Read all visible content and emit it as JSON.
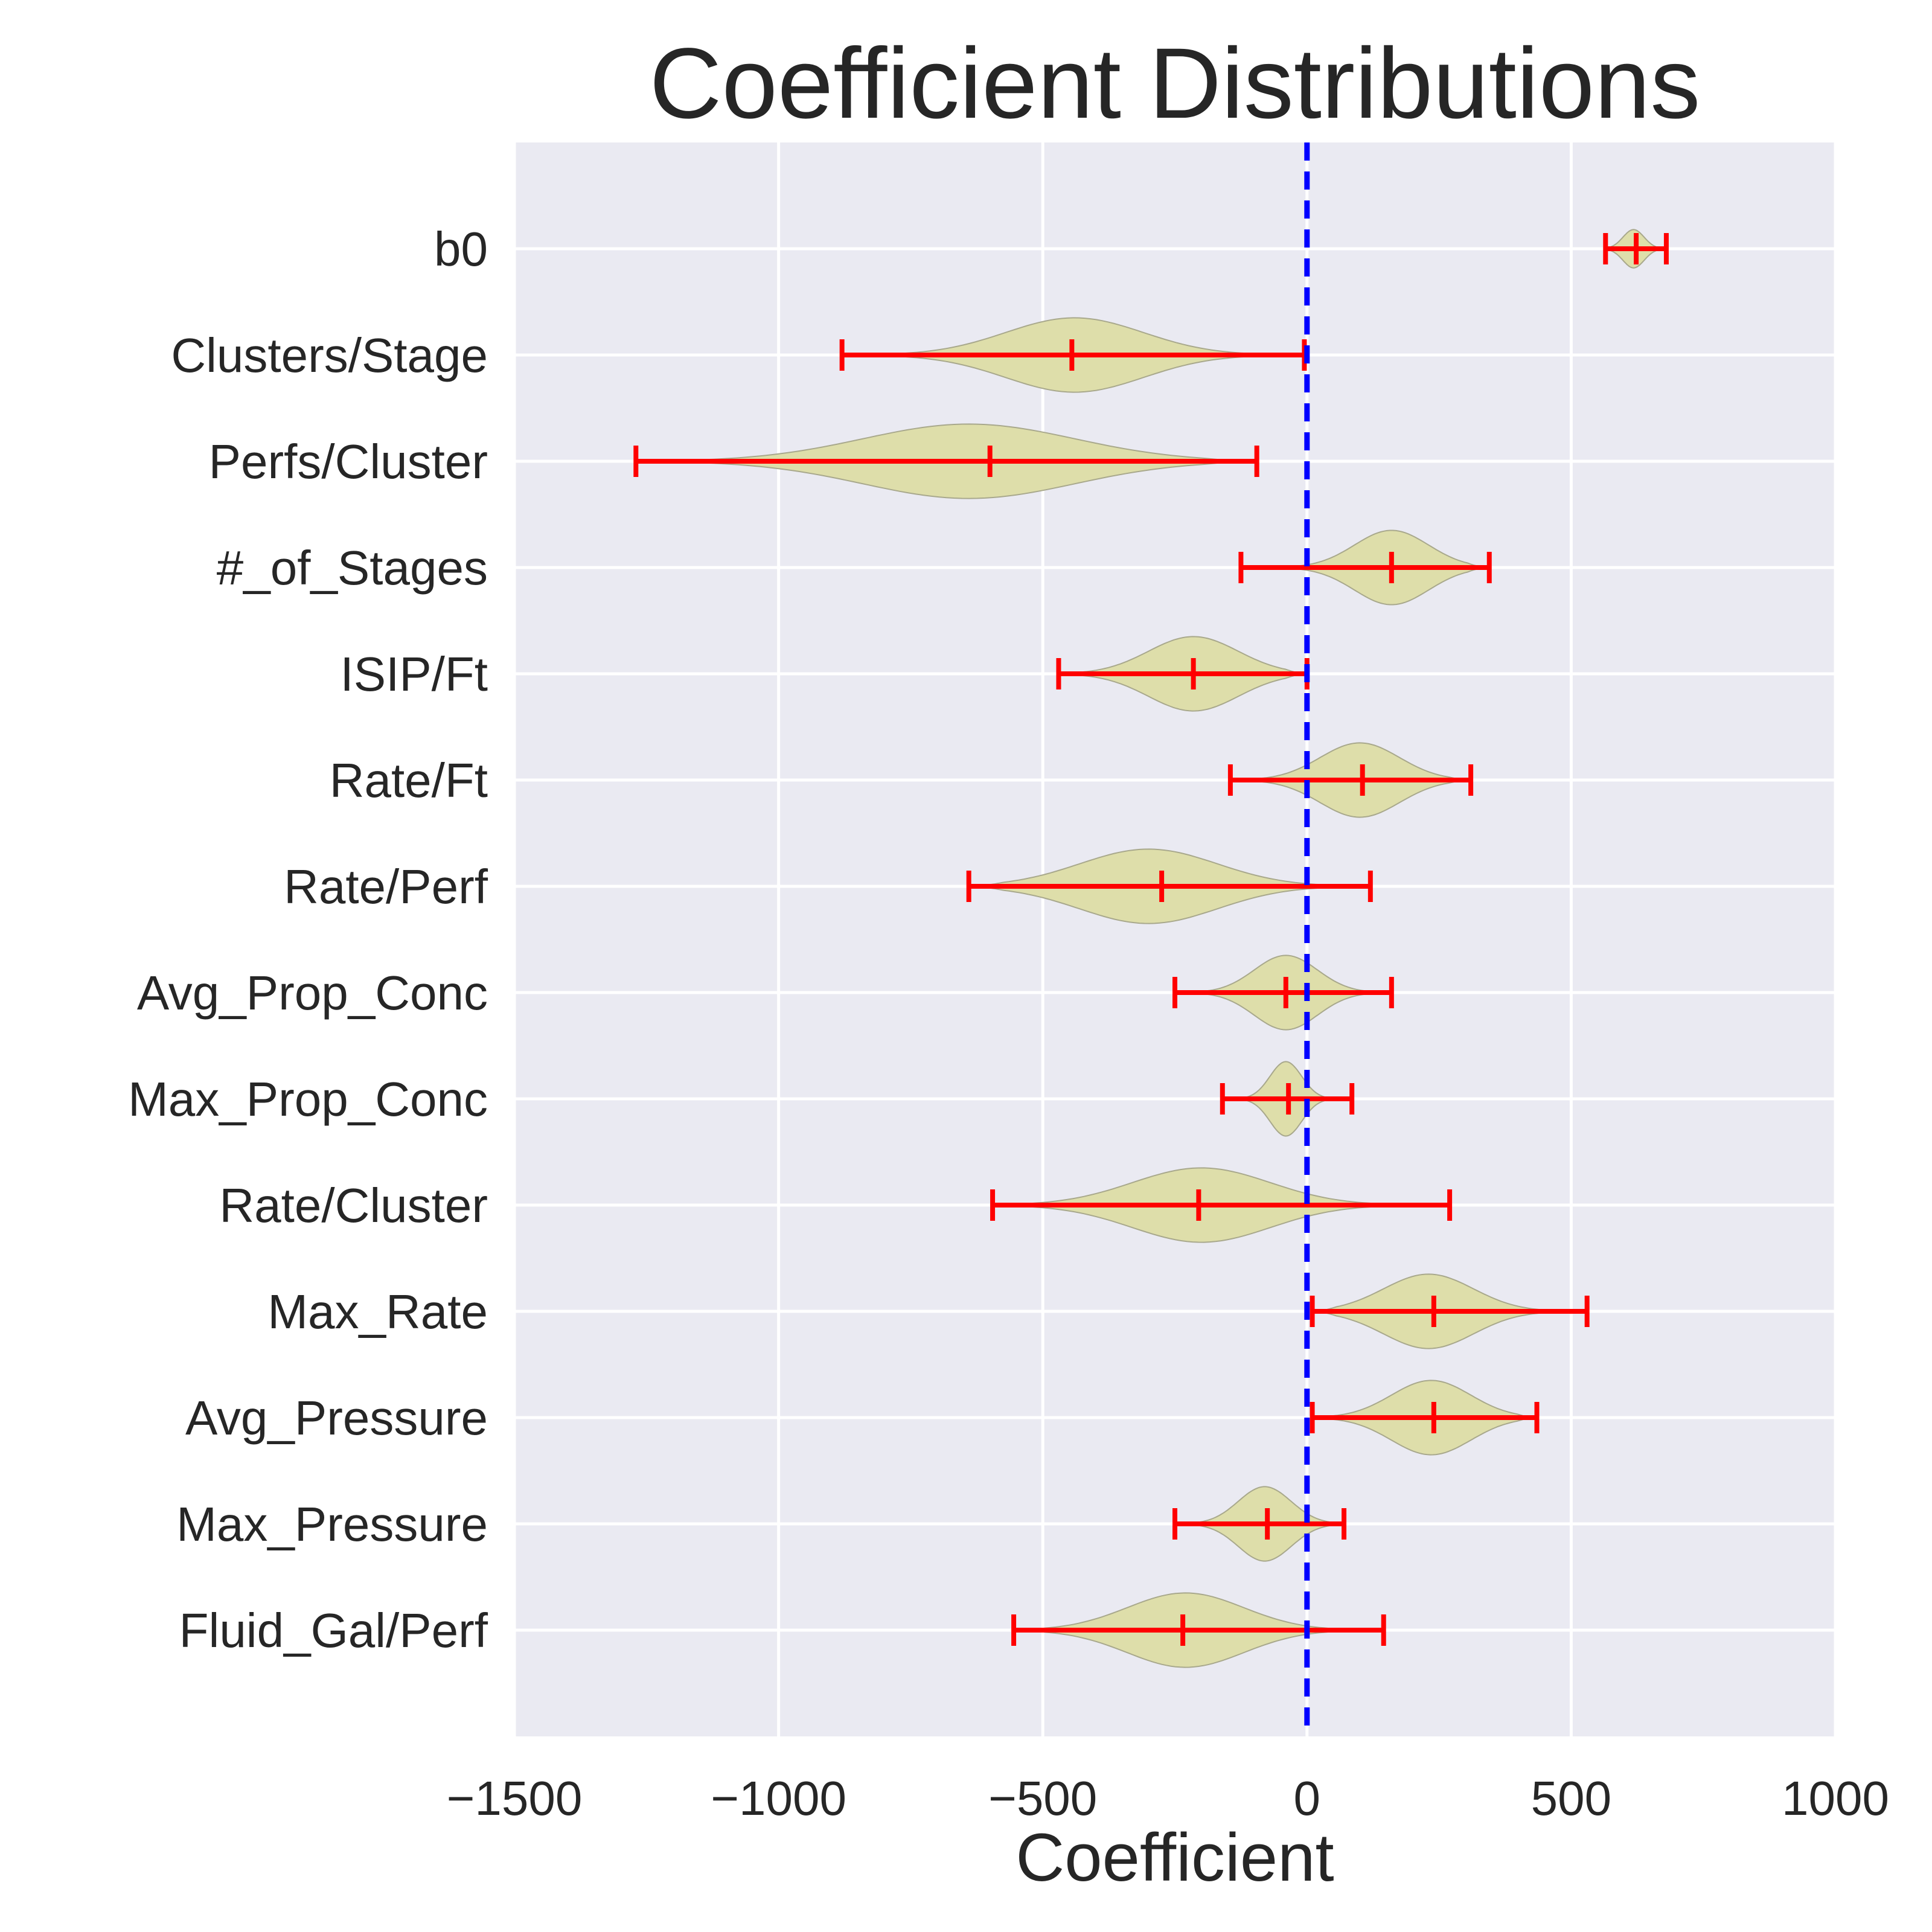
{
  "chart_data": {
    "type": "violin",
    "title": "Coefficient Distributions",
    "xlabel": "Coefficient",
    "ylabel": "",
    "xlim": [
      -1500,
      1000
    ],
    "xticks": [
      -1500,
      -1000,
      -500,
      0,
      500,
      1000
    ],
    "xtick_labels": [
      "−1500",
      "−1000",
      "−500",
      "0",
      "500",
      "1000"
    ],
    "grid": true,
    "reference_line": {
      "x": 0,
      "style": "dashed",
      "color": "#0000ff"
    },
    "colors": {
      "background": "#eaeaf2",
      "grid": "#ffffff",
      "violin_fill": "#dedeaa",
      "violin_edge": "#a8a88c",
      "whisker": "#ff0000",
      "text": "#262626"
    },
    "categories": [
      "b0",
      "Clusters/Stage",
      "Perfs/Cluster",
      "#_of_Stages",
      "ISIP/Ft",
      "Rate/Ft",
      "Rate/Perf",
      "Avg_Prop_Conc",
      "Max_Prop_Conc",
      "Rate/Cluster",
      "Max_Rate",
      "Avg_Pressure",
      "Max_Pressure",
      "Fluid_Gal/Perf"
    ],
    "series": [
      {
        "label": "b0",
        "min": 565,
        "median": 623,
        "max": 680,
        "mode": 618,
        "spread": 20,
        "max_width": 0.18
      },
      {
        "label": "Clusters/Stage",
        "min": -880,
        "median": -445,
        "max": -5,
        "mode": -440,
        "spread": 130,
        "max_width": 0.35
      },
      {
        "label": "Perfs/Cluster",
        "min": -1270,
        "median": -600,
        "max": -95,
        "mode": -640,
        "spread": 200,
        "max_width": 0.35
      },
      {
        "label": "#_of_Stages",
        "min": -125,
        "median": 160,
        "max": 345,
        "mode": 160,
        "spread": 70,
        "max_width": 0.35
      },
      {
        "label": "ISIP/Ft",
        "min": -470,
        "median": -215,
        "max": 0,
        "mode": -215,
        "spread": 85,
        "max_width": 0.35
      },
      {
        "label": "Rate/Ft",
        "min": -145,
        "median": 105,
        "max": 310,
        "mode": 100,
        "spread": 75,
        "max_width": 0.35
      },
      {
        "label": "Rate/Perf",
        "min": -640,
        "median": -275,
        "max": 120,
        "mode": -300,
        "spread": 130,
        "max_width": 0.35
      },
      {
        "label": "Avg_Prop_Conc",
        "min": -250,
        "median": -40,
        "max": 160,
        "mode": -40,
        "spread": 60,
        "max_width": 0.35
      },
      {
        "label": "Max_Prop_Conc",
        "min": -160,
        "median": -35,
        "max": 85,
        "mode": -40,
        "spread": 30,
        "max_width": 0.35
      },
      {
        "label": "Rate/Cluster",
        "min": -595,
        "median": -205,
        "max": 270,
        "mode": -200,
        "spread": 130,
        "max_width": 0.35
      },
      {
        "label": "Max_Rate",
        "min": 10,
        "median": 240,
        "max": 530,
        "mode": 230,
        "spread": 85,
        "max_width": 0.35
      },
      {
        "label": "Avg_Pressure",
        "min": 10,
        "median": 240,
        "max": 435,
        "mode": 235,
        "spread": 75,
        "max_width": 0.35
      },
      {
        "label": "Max_Pressure",
        "min": -250,
        "median": -75,
        "max": 70,
        "mode": -80,
        "spread": 50,
        "max_width": 0.35
      },
      {
        "label": "Fluid_Gal/Perf",
        "min": -555,
        "median": -235,
        "max": 145,
        "mode": -230,
        "spread": 110,
        "max_width": 0.35
      }
    ]
  }
}
